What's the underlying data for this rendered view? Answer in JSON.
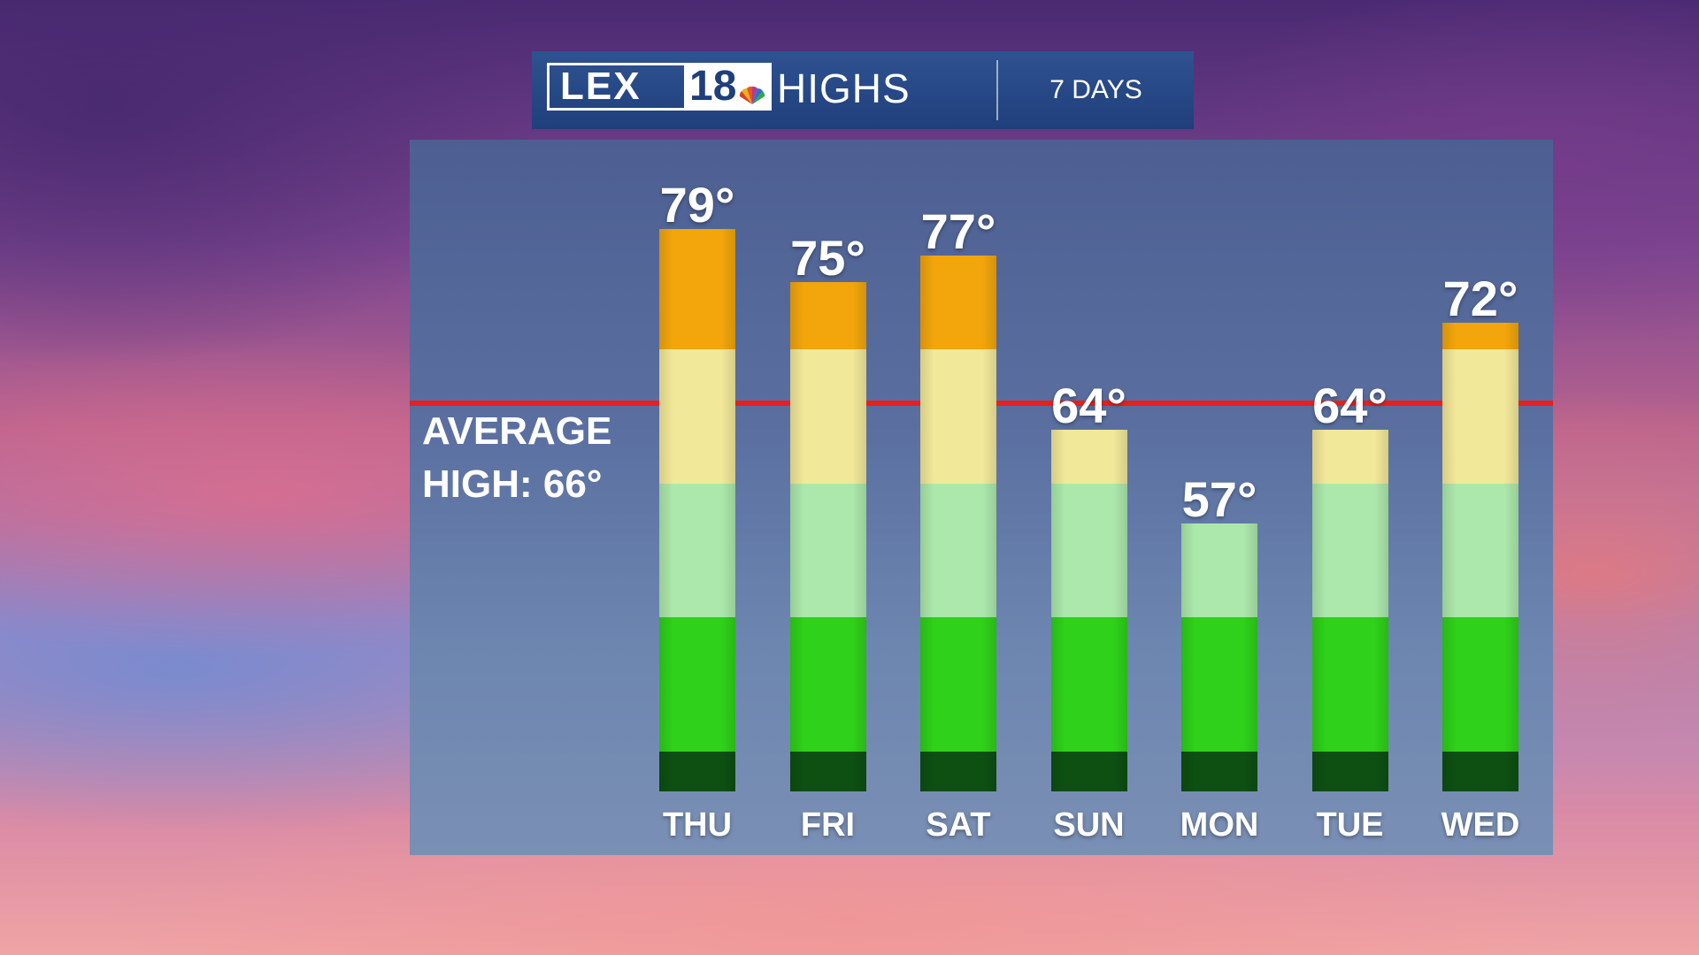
{
  "header": {
    "logo_text": "LEX",
    "logo_number": "18",
    "title": "HIGHS",
    "period": "7 DAYS"
  },
  "average": {
    "label_line1": "AVERAGE",
    "label_line2": "HIGH: 66°"
  },
  "colors": {
    "average_line": "#e8201d",
    "band_orange": "#f2a60c",
    "band_yellow": "#f2e89a",
    "band_light_green": "#ace8ac",
    "band_green": "#2fd11a",
    "band_dark_green": "#0d5012"
  },
  "chart_data": {
    "type": "bar",
    "categories": [
      "THU",
      "FRI",
      "SAT",
      "SUN",
      "MON",
      "TUE",
      "WED"
    ],
    "values": [
      79,
      75,
      77,
      64,
      57,
      64,
      72
    ],
    "value_labels": [
      "79°",
      "75°",
      "77°",
      "64°",
      "57°",
      "64°",
      "72°"
    ],
    "average_high": 66,
    "color_bands": [
      {
        "from": 70,
        "to": 100,
        "color": "#f2a60c"
      },
      {
        "from": 60,
        "to": 70,
        "color": "#f2e89a"
      },
      {
        "from": 50,
        "to": 60,
        "color": "#ace8ac"
      },
      {
        "from": 40,
        "to": 50,
        "color": "#2fd11a"
      },
      {
        "from": 30,
        "to": 40,
        "color": "#0d5012"
      }
    ],
    "ylim": [
      37,
      90
    ]
  }
}
